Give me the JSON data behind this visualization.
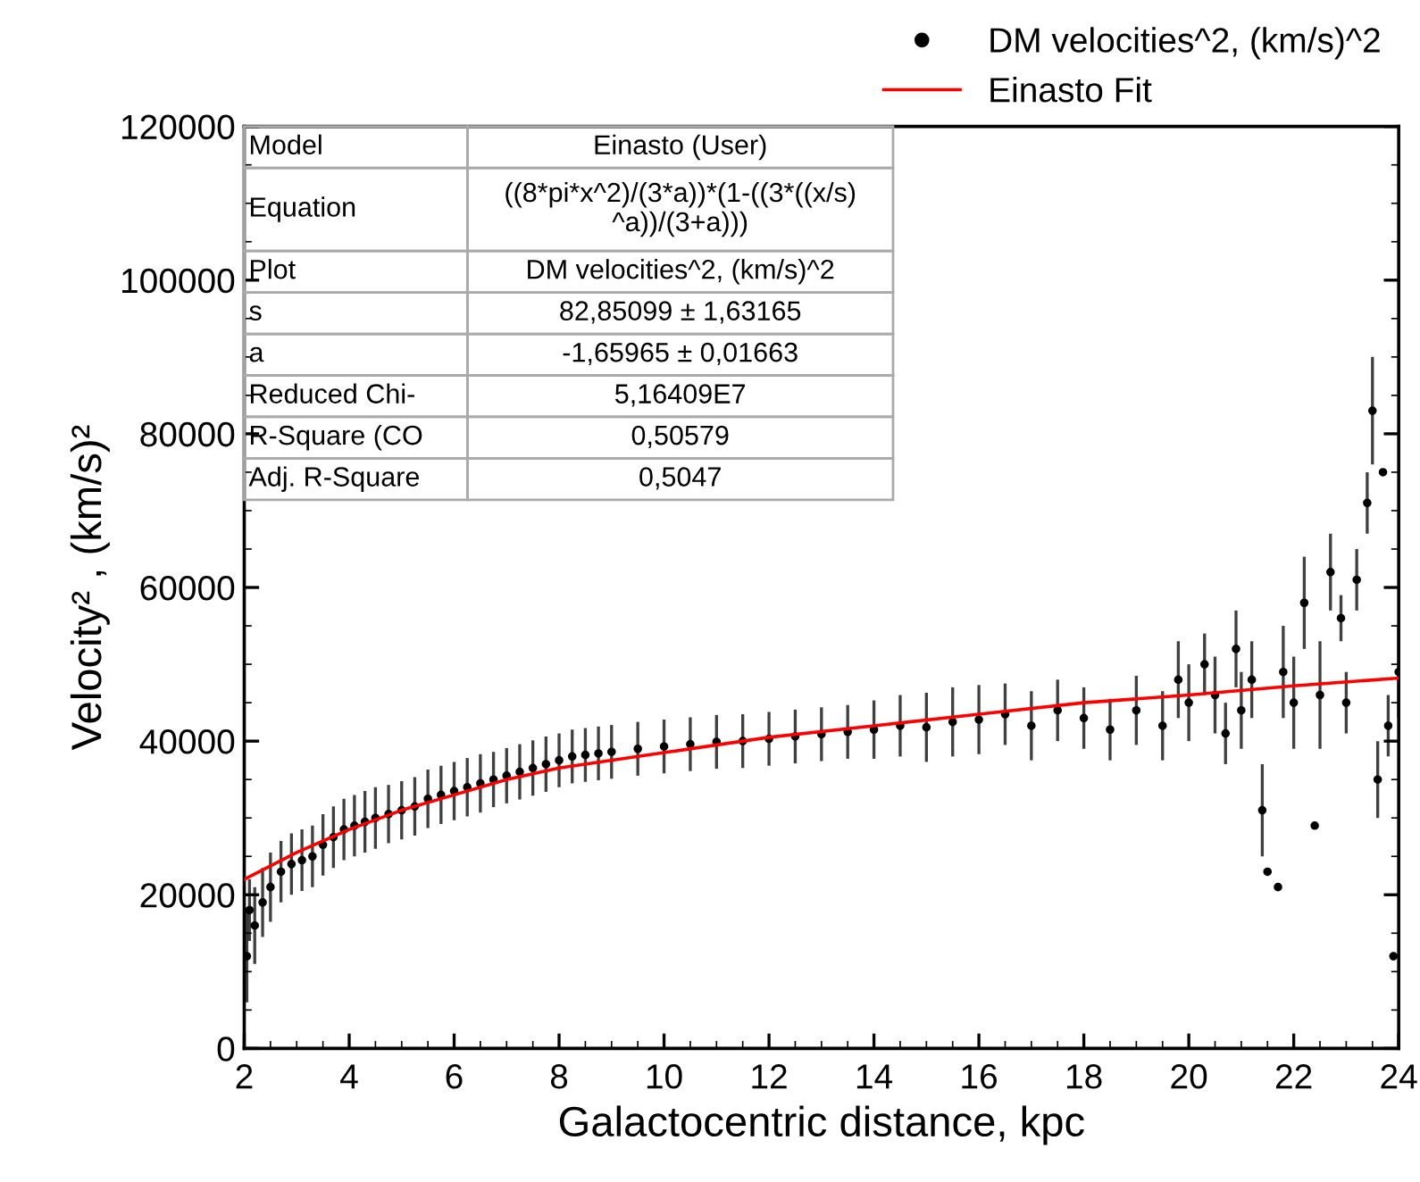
{
  "chart_data": {
    "type": "scatter",
    "xlabel": "Galactocentric distance, kpc",
    "ylabel": "Velocity² , (km/s)²",
    "xlim": [
      2,
      24
    ],
    "xticks": [
      2,
      4,
      6,
      8,
      10,
      12,
      14,
      16,
      18,
      20,
      22,
      24
    ],
    "ylim": [
      0,
      120000
    ],
    "yticks": [
      0,
      20000,
      40000,
      60000,
      80000,
      100000,
      120000
    ],
    "grid": false,
    "legend": "top right",
    "marker": "circle",
    "annotations": [
      "Model",
      "Einasto (User)",
      "Equation",
      "((8*pi*x^2)/(3*a))*(1-((3*((x/s)\n^a))/(3+a)))",
      "Plot",
      "DM velocities^2, (km/s)^2",
      "s",
      "82,85099 ± 1,63165",
      "a",
      "-1,65965 ± 0,01663",
      "Reduced Chi-",
      "5,16409E7",
      "R-Square (CO",
      "0,50579",
      "Adj. R-Square",
      "0,5047"
    ],
    "series": [
      {
        "name": "DM velocities^2, (km/s)^2",
        "color": "#000000",
        "x": [
          2.05,
          2.1,
          2.2,
          2.35,
          2.5,
          2.7,
          2.9,
          3.1,
          3.3,
          3.5,
          3.7,
          3.9,
          4.1,
          4.3,
          4.5,
          4.75,
          5.0,
          5.25,
          5.5,
          5.75,
          6.0,
          6.25,
          6.5,
          6.75,
          7.0,
          7.25,
          7.5,
          7.75,
          8.0,
          8.25,
          8.5,
          8.75,
          9.0,
          9.5,
          10.0,
          10.5,
          11.0,
          11.5,
          12.0,
          12.5,
          13.0,
          13.5,
          14.0,
          14.5,
          15.0,
          15.5,
          16.0,
          16.5,
          17.0,
          17.5,
          18.0,
          18.5,
          19.0,
          19.5,
          19.8,
          20.0,
          20.3,
          20.5,
          20.7,
          20.9,
          21.0,
          21.2,
          21.4,
          21.5,
          21.7,
          21.8,
          22.0,
          22.2,
          22.4,
          22.5,
          22.7,
          22.9,
          23.0,
          23.2,
          23.4,
          23.5,
          23.6,
          23.7,
          23.8,
          23.9,
          24.0
        ],
        "values": [
          12000,
          18000,
          16000,
          19000,
          21000,
          23000,
          24000,
          24500,
          25000,
          26500,
          27500,
          28500,
          29000,
          29500,
          30000,
          30500,
          31000,
          31500,
          32500,
          33000,
          33500,
          34000,
          34500,
          35000,
          35500,
          36000,
          36500,
          37000,
          37500,
          38000,
          38200,
          38400,
          38600,
          39000,
          39300,
          39600,
          39900,
          40000,
          40300,
          40600,
          40900,
          41200,
          41500,
          42000,
          41800,
          42500,
          42800,
          43500,
          42000,
          44000,
          43000,
          41500,
          44000,
          42000,
          48000,
          45000,
          50000,
          46000,
          41000,
          52000,
          44000,
          48000,
          31000,
          23000,
          21000,
          49000,
          45000,
          58000,
          29000,
          46000,
          62000,
          56000,
          45000,
          61000,
          71000,
          83000,
          35000,
          75000,
          42000,
          12000,
          49000
        ],
        "errors": [
          6000,
          4000,
          5000,
          4500,
          4500,
          4000,
          4000,
          4000,
          4000,
          4000,
          4000,
          4000,
          4000,
          4000,
          4000,
          3800,
          3800,
          3800,
          3800,
          3800,
          3800,
          3800,
          3800,
          3600,
          3600,
          3600,
          3600,
          3600,
          3500,
          3500,
          3500,
          3500,
          3500,
          3500,
          3500,
          3500,
          3500,
          3500,
          3500,
          3500,
          3500,
          3500,
          3800,
          4000,
          4500,
          4500,
          4500,
          4000,
          4500,
          4000,
          4000,
          4000,
          4500,
          4500,
          5000,
          5000,
          4000,
          5000,
          4000,
          5000,
          5000,
          5000,
          6000,
          null,
          null,
          6000,
          6000,
          6000,
          null,
          7000,
          5000,
          3000,
          4000,
          4000,
          4000,
          7000,
          5000,
          null,
          4000,
          null,
          6000
        ]
      },
      {
        "name": "Einasto Fit",
        "type": "line",
        "color": "#ff0000",
        "marker": "none",
        "line_style": "solid",
        "x": [
          2,
          3,
          4,
          5,
          6,
          7,
          8,
          10,
          12,
          14,
          16,
          18,
          20,
          22,
          24
        ],
        "values": [
          22000,
          25500,
          28500,
          31000,
          33000,
          35000,
          36500,
          38500,
          40500,
          42000,
          43500,
          45000,
          46000,
          47200,
          48200
        ]
      }
    ]
  }
}
